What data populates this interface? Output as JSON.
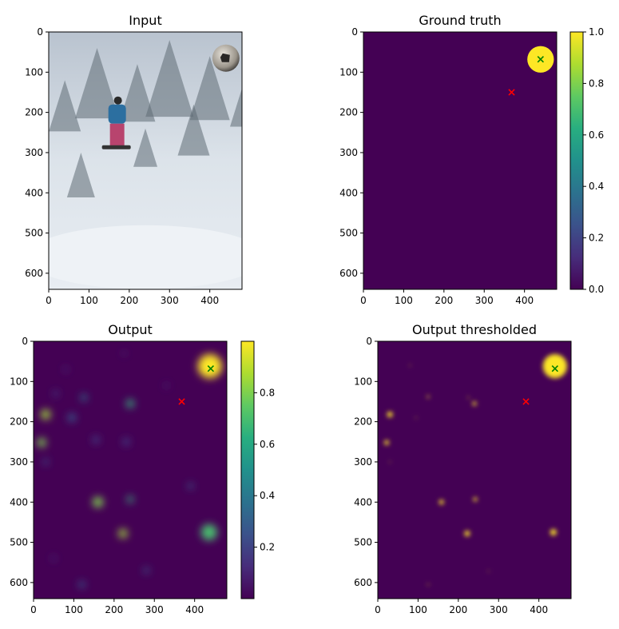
{
  "chart_data": [
    {
      "type": "heatmap",
      "title": "Input",
      "xlabel": "",
      "ylabel": "",
      "xlim": [
        0,
        480
      ],
      "ylim": [
        640,
        0
      ],
      "xticks": [
        0,
        100,
        200,
        300,
        400
      ],
      "yticks": [
        0,
        100,
        200,
        300,
        400,
        500,
        600
      ],
      "grid": false,
      "content": "photograph",
      "colorbar": null
    },
    {
      "type": "heatmap",
      "title": "Ground truth",
      "xlabel": "",
      "ylabel": "",
      "xlim": [
        0,
        480
      ],
      "ylim": [
        640,
        0
      ],
      "xticks": [
        0,
        100,
        200,
        300,
        400
      ],
      "yticks": [
        0,
        100,
        200,
        300,
        400,
        500,
        600
      ],
      "grid": false,
      "colormap": "viridis",
      "colorbar": {
        "range": [
          0.0,
          1.0
        ],
        "ticks": [
          "0.0",
          "0.2",
          "0.4",
          "0.6",
          "0.8",
          "1.0"
        ]
      },
      "blobs": [
        {
          "x": 440,
          "y": 68,
          "r": 33,
          "value": 1.0
        }
      ],
      "markers": [
        {
          "x": 440,
          "y": 68,
          "symbol": "x",
          "color": "#008000"
        },
        {
          "x": 368,
          "y": 150,
          "symbol": "x",
          "color": "#ff0000"
        }
      ]
    },
    {
      "type": "heatmap",
      "title": "Output",
      "xlabel": "",
      "ylabel": "",
      "xlim": [
        0,
        480
      ],
      "ylim": [
        640,
        0
      ],
      "xticks": [
        0,
        100,
        200,
        300,
        400
      ],
      "yticks": [
        0,
        100,
        200,
        300,
        400,
        500,
        600
      ],
      "grid": false,
      "colormap": "viridis",
      "colorbar": {
        "range": [
          0.0,
          1.0
        ],
        "ticks": [
          "0.2",
          "0.4",
          "0.6",
          "0.8"
        ]
      },
      "blobs": [
        {
          "x": 438,
          "y": 62,
          "r": 30,
          "value": 1.0
        },
        {
          "x": 30,
          "y": 182,
          "r": 12,
          "value": 0.85
        },
        {
          "x": 20,
          "y": 252,
          "r": 11,
          "value": 0.8
        },
        {
          "x": 160,
          "y": 400,
          "r": 13,
          "value": 0.8
        },
        {
          "x": 222,
          "y": 478,
          "r": 11,
          "value": 0.85
        },
        {
          "x": 240,
          "y": 155,
          "r": 10,
          "value": 0.65
        },
        {
          "x": 240,
          "y": 393,
          "r": 8,
          "value": 0.65
        },
        {
          "x": 436,
          "y": 475,
          "r": 20,
          "value": 0.7
        },
        {
          "x": 125,
          "y": 140,
          "r": 8,
          "value": 0.4
        },
        {
          "x": 95,
          "y": 190,
          "r": 10,
          "value": 0.3
        },
        {
          "x": 55,
          "y": 130,
          "r": 7,
          "value": 0.2
        },
        {
          "x": 30,
          "y": 300,
          "r": 7,
          "value": 0.25
        },
        {
          "x": 390,
          "y": 360,
          "r": 7,
          "value": 0.3
        },
        {
          "x": 280,
          "y": 570,
          "r": 7,
          "value": 0.3
        },
        {
          "x": 120,
          "y": 605,
          "r": 8,
          "value": 0.3
        },
        {
          "x": 155,
          "y": 245,
          "r": 9,
          "value": 0.2
        },
        {
          "x": 230,
          "y": 250,
          "r": 9,
          "value": 0.2
        },
        {
          "x": 50,
          "y": 540,
          "r": 6,
          "value": 0.15
        },
        {
          "x": 80,
          "y": 70,
          "r": 6,
          "value": 0.15
        },
        {
          "x": 225,
          "y": 30,
          "r": 5,
          "value": 0.15
        },
        {
          "x": 330,
          "y": 110,
          "r": 6,
          "value": 0.12
        }
      ],
      "markers": [
        {
          "x": 440,
          "y": 68,
          "symbol": "x",
          "color": "#008000"
        },
        {
          "x": 368,
          "y": 150,
          "symbol": "x",
          "color": "#ff0000"
        }
      ]
    },
    {
      "type": "heatmap",
      "title": "Output thresholded",
      "xlabel": "",
      "ylabel": "",
      "xlim": [
        0,
        480
      ],
      "ylim": [
        640,
        0
      ],
      "xticks": [
        0,
        100,
        200,
        300,
        400
      ],
      "yticks": [
        0,
        100,
        200,
        300,
        400,
        500,
        600
      ],
      "grid": false,
      "colormap": "viridis",
      "colorbar": null,
      "blobs": [
        {
          "x": 440,
          "y": 62,
          "r": 30,
          "value": 1.0
        },
        {
          "x": 30,
          "y": 182,
          "r": 7,
          "value": 1.0
        },
        {
          "x": 22,
          "y": 252,
          "r": 6,
          "value": 1.0
        },
        {
          "x": 158,
          "y": 400,
          "r": 6,
          "value": 1.0
        },
        {
          "x": 222,
          "y": 478,
          "r": 7,
          "value": 1.0
        },
        {
          "x": 240,
          "y": 155,
          "r": 5,
          "value": 1.0
        },
        {
          "x": 242,
          "y": 393,
          "r": 5,
          "value": 1.0
        },
        {
          "x": 436,
          "y": 475,
          "r": 8,
          "value": 1.0
        },
        {
          "x": 125,
          "y": 138,
          "r": 3,
          "value": 1.0
        },
        {
          "x": 225,
          "y": 140,
          "r": 2,
          "value": 1.0
        },
        {
          "x": 80,
          "y": 60,
          "r": 1.5,
          "value": 1.0
        },
        {
          "x": 95,
          "y": 190,
          "r": 1.5,
          "value": 1.0
        },
        {
          "x": 30,
          "y": 300,
          "r": 1.5,
          "value": 1.0
        },
        {
          "x": 125,
          "y": 605,
          "r": 2,
          "value": 1.0
        },
        {
          "x": 275,
          "y": 572,
          "r": 1.5,
          "value": 1.0
        }
      ],
      "markers": [
        {
          "x": 440,
          "y": 68,
          "symbol": "x",
          "color": "#008000"
        },
        {
          "x": 368,
          "y": 150,
          "symbol": "x",
          "color": "#ff0000"
        }
      ]
    }
  ],
  "colors": {
    "viridis_low": "#440154",
    "viridis_mid": "#21918c",
    "viridis_high": "#fde725",
    "marker_target": "#008000",
    "marker_other": "#ff0000"
  },
  "input_photo": {
    "scene": "snowboarder-in-snowy-forest",
    "ball_icon": "soccer-ball-icon"
  }
}
